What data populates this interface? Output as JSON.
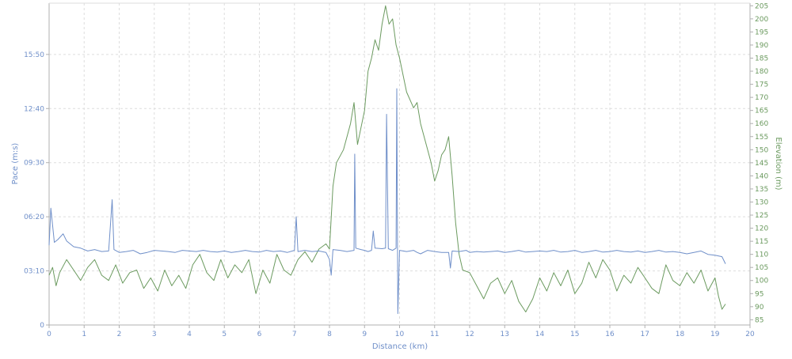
{
  "chart_data": {
    "type": "line",
    "grid": true,
    "xlabel": "Distance (km)",
    "ylabel_left": "Pace (m:s)",
    "ylabel_right": "Elevation (m)",
    "xlim": [
      0,
      20
    ],
    "xticks": [
      "0",
      "1",
      "2",
      "3",
      "4",
      "5",
      "6",
      "7",
      "8",
      "9",
      "10",
      "11",
      "12",
      "13",
      "14",
      "15",
      "16",
      "17",
      "18",
      "19",
      "20"
    ],
    "pace_axis": {
      "min_seconds": 0,
      "max_seconds": 1130,
      "ticks": [
        {
          "label": "0",
          "seconds": 0
        },
        {
          "label": "03:10",
          "seconds": 190
        },
        {
          "label": "06:20",
          "seconds": 380
        },
        {
          "label": "09:30",
          "seconds": 570
        },
        {
          "label": "12:40",
          "seconds": 760
        },
        {
          "label": "15:50",
          "seconds": 950
        }
      ]
    },
    "elevation_axis": {
      "min": 83,
      "max": 206,
      "ticks": [
        "85",
        "90",
        "95",
        "100",
        "105",
        "110",
        "115",
        "120",
        "125",
        "130",
        "135",
        "140",
        "145",
        "150",
        "155",
        "160",
        "165",
        "170",
        "175",
        "180",
        "185",
        "190",
        "195",
        "200",
        "205"
      ]
    },
    "colors": {
      "pace": "#6f8fc9",
      "elevation": "#6b9a5f",
      "axis_text_left": "#6f8fc9",
      "axis_text_right": "#6b9a5f",
      "grid": "#dddddd",
      "axis_line": "#b0b0b0"
    },
    "series": [
      {
        "key": "pace",
        "axis": "left",
        "x": [
          0.0,
          0.05,
          0.15,
          0.25,
          0.4,
          0.5,
          0.7,
          0.9,
          1.1,
          1.3,
          1.5,
          1.7,
          1.8,
          1.85,
          2.0,
          2.2,
          2.4,
          2.6,
          2.8,
          3.0,
          3.2,
          3.4,
          3.6,
          3.8,
          4.0,
          4.2,
          4.4,
          4.6,
          4.8,
          5.0,
          5.2,
          5.4,
          5.6,
          5.8,
          6.0,
          6.2,
          6.4,
          6.6,
          6.8,
          7.0,
          7.05,
          7.1,
          7.3,
          7.5,
          7.7,
          7.9,
          8.0,
          8.05,
          8.1,
          8.3,
          8.5,
          8.7,
          8.72,
          8.75,
          8.9,
          9.0,
          9.1,
          9.2,
          9.25,
          9.3,
          9.5,
          9.6,
          9.63,
          9.68,
          9.8,
          9.9,
          9.92,
          9.95,
          10.0,
          10.2,
          10.4,
          10.5,
          10.6,
          10.8,
          11.0,
          11.2,
          11.4,
          11.45,
          11.5,
          11.7,
          11.9,
          12.0,
          12.2,
          12.4,
          12.6,
          12.8,
          13.0,
          13.2,
          13.4,
          13.6,
          13.8,
          14.0,
          14.2,
          14.4,
          14.6,
          14.8,
          15.0,
          15.2,
          15.4,
          15.6,
          15.8,
          16.0,
          16.2,
          16.4,
          16.6,
          16.8,
          17.0,
          17.2,
          17.4,
          17.6,
          17.8,
          18.0,
          18.2,
          18.4,
          18.6,
          18.8,
          19.0,
          19.2,
          19.3
        ],
        "values": [
          280,
          410,
          290,
          300,
          320,
          295,
          275,
          270,
          260,
          265,
          258,
          260,
          440,
          265,
          255,
          258,
          262,
          250,
          255,
          262,
          260,
          258,
          255,
          262,
          260,
          258,
          262,
          258,
          256,
          260,
          255,
          258,
          262,
          258,
          256,
          262,
          258,
          260,
          255,
          262,
          380,
          258,
          262,
          258,
          260,
          255,
          230,
          175,
          265,
          262,
          258,
          262,
          600,
          270,
          265,
          262,
          258,
          262,
          330,
          270,
          268,
          270,
          740,
          268,
          262,
          270,
          830,
          40,
          262,
          258,
          262,
          255,
          250,
          262,
          258,
          255,
          255,
          200,
          260,
          258,
          262,
          255,
          258,
          256,
          258,
          260,
          255,
          258,
          262,
          256,
          258,
          260,
          258,
          262,
          256,
          258,
          262,
          255,
          258,
          262,
          256,
          258,
          262,
          258,
          256,
          260,
          255,
          258,
          262,
          256,
          258,
          255,
          250,
          255,
          260,
          248,
          245,
          240,
          215
        ]
      },
      {
        "key": "elevation",
        "axis": "right",
        "x": [
          0.0,
          0.1,
          0.2,
          0.3,
          0.5,
          0.7,
          0.9,
          1.1,
          1.3,
          1.5,
          1.7,
          1.9,
          2.1,
          2.3,
          2.5,
          2.7,
          2.9,
          3.1,
          3.3,
          3.5,
          3.7,
          3.9,
          4.1,
          4.3,
          4.5,
          4.7,
          4.9,
          5.1,
          5.3,
          5.5,
          5.7,
          5.9,
          6.1,
          6.3,
          6.5,
          6.7,
          6.9,
          7.1,
          7.3,
          7.5,
          7.7,
          7.9,
          8.0,
          8.1,
          8.2,
          8.4,
          8.6,
          8.7,
          8.8,
          9.0,
          9.1,
          9.2,
          9.3,
          9.4,
          9.5,
          9.6,
          9.7,
          9.8,
          9.9,
          10.0,
          10.2,
          10.4,
          10.5,
          10.6,
          10.8,
          10.9,
          11.0,
          11.1,
          11.2,
          11.3,
          11.4,
          11.5,
          11.6,
          11.7,
          11.8,
          12.0,
          12.2,
          12.4,
          12.6,
          12.8,
          13.0,
          13.2,
          13.4,
          13.6,
          13.8,
          14.0,
          14.2,
          14.4,
          14.6,
          14.8,
          15.0,
          15.2,
          15.4,
          15.6,
          15.8,
          16.0,
          16.2,
          16.4,
          16.6,
          16.8,
          17.0,
          17.2,
          17.4,
          17.6,
          17.8,
          18.0,
          18.2,
          18.4,
          18.6,
          18.8,
          19.0,
          19.1,
          19.2,
          19.3
        ],
        "values": [
          102,
          105,
          98,
          103,
          108,
          104,
          100,
          105,
          108,
          102,
          100,
          106,
          99,
          103,
          104,
          97,
          101,
          96,
          104,
          98,
          102,
          97,
          106,
          110,
          103,
          100,
          108,
          101,
          106,
          103,
          108,
          95,
          104,
          99,
          110,
          104,
          102,
          108,
          111,
          107,
          112,
          114,
          112,
          136,
          145,
          150,
          160,
          168,
          152,
          165,
          180,
          185,
          192,
          188,
          198,
          205,
          198,
          200,
          190,
          185,
          172,
          166,
          168,
          160,
          150,
          145,
          138,
          142,
          148,
          150,
          155,
          140,
          122,
          110,
          104,
          103,
          98,
          93,
          99,
          101,
          95,
          100,
          92,
          88,
          93,
          101,
          96,
          103,
          98,
          104,
          95,
          99,
          107,
          101,
          108,
          104,
          96,
          102,
          99,
          105,
          101,
          97,
          95,
          106,
          100,
          98,
          103,
          99,
          104,
          96,
          101,
          94,
          89,
          91
        ]
      }
    ]
  }
}
